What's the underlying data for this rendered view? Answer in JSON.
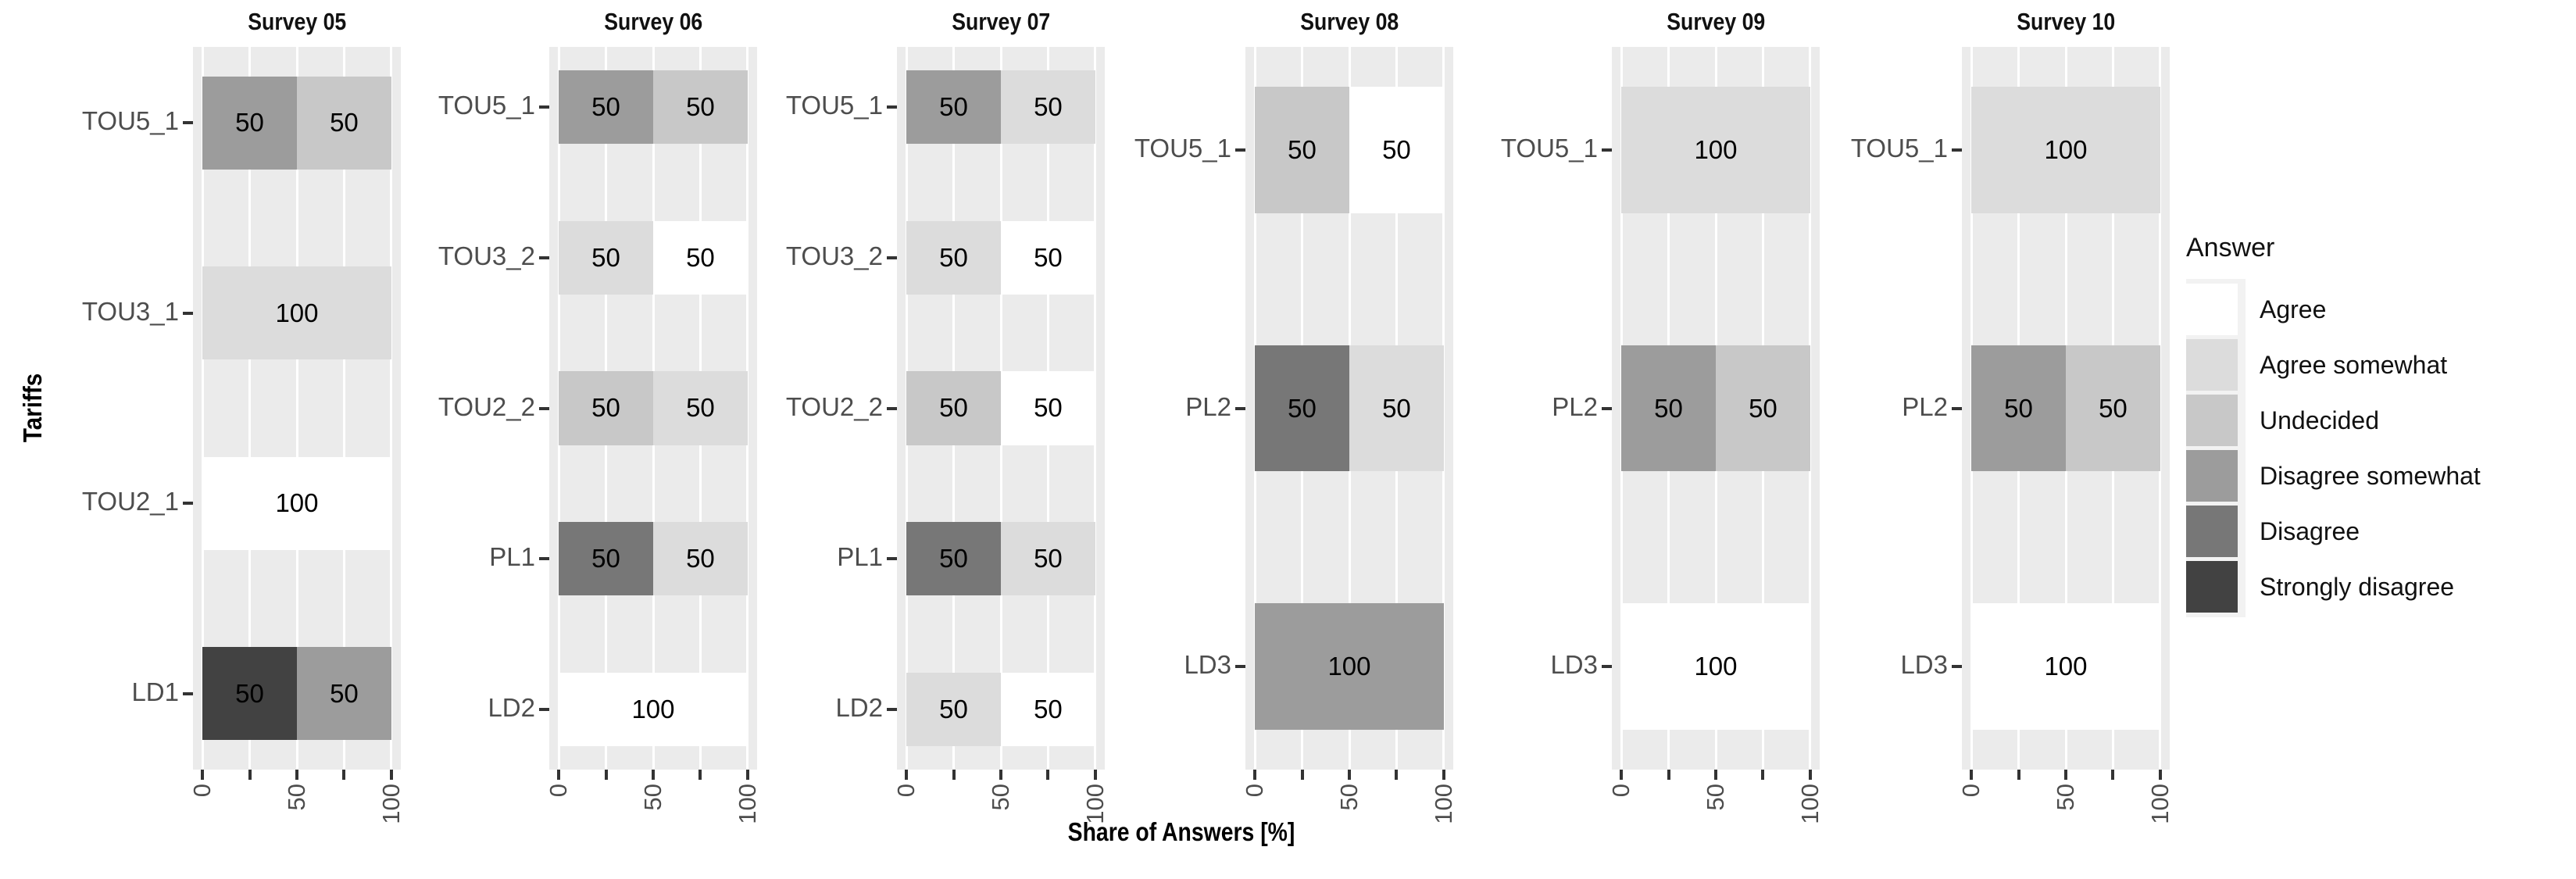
{
  "axes": {
    "x_title": "Share of Answers [%]",
    "y_title": "Tariffs",
    "x_ticks": [
      0,
      25,
      50,
      75,
      100
    ],
    "x_labeled_ticks": [
      0,
      50,
      100
    ],
    "xlim": [
      0,
      100
    ]
  },
  "legend": {
    "title": "Answer",
    "position": "right"
  },
  "answers": [
    {
      "label": "Agree",
      "color": "#FFFFFF"
    },
    {
      "label": "Agree somewhat",
      "color": "#DCDCDC"
    },
    {
      "label": "Undecided",
      "color": "#C8C8C8"
    },
    {
      "label": "Disagree somewhat",
      "color": "#9C9C9C"
    },
    {
      "label": "Disagree",
      "color": "#777777"
    },
    {
      "label": "Strongly disagree",
      "color": "#424242"
    }
  ],
  "style_colors": {
    "panel_background": "#EBEBEB",
    "gridline": "#FFFFFF",
    "tick_mark": "#333333",
    "axis_text": "#4D4D4D",
    "legend_key_background": "#F2F2F2"
  },
  "chart_data": {
    "type": "bar",
    "orientation": "horizontal",
    "stacked": true,
    "title": "",
    "xlabel": "Share of Answers [%]",
    "ylabel": "Tariffs",
    "xlim": [
      0,
      100
    ],
    "legend_title": "Answer",
    "legend_position": "right",
    "grid": true,
    "facets": [
      {
        "title": "Survey 05",
        "rows": [
          {
            "tariff": "TOU5_1",
            "segments": [
              {
                "answer": "Disagree somewhat",
                "value": 50
              },
              {
                "answer": "Undecided",
                "value": 50
              }
            ]
          },
          {
            "tariff": "TOU3_1",
            "segments": [
              {
                "answer": "Agree somewhat",
                "value": 100
              }
            ]
          },
          {
            "tariff": "TOU2_1",
            "segments": [
              {
                "answer": "Agree",
                "value": 100
              }
            ]
          },
          {
            "tariff": "LD1",
            "segments": [
              {
                "answer": "Strongly disagree",
                "value": 50
              },
              {
                "answer": "Disagree somewhat",
                "value": 50
              }
            ]
          }
        ]
      },
      {
        "title": "Survey 06",
        "rows": [
          {
            "tariff": "TOU5_1",
            "segments": [
              {
                "answer": "Disagree somewhat",
                "value": 50
              },
              {
                "answer": "Undecided",
                "value": 50
              }
            ]
          },
          {
            "tariff": "TOU3_2",
            "segments": [
              {
                "answer": "Agree somewhat",
                "value": 50
              },
              {
                "answer": "Agree",
                "value": 50
              }
            ]
          },
          {
            "tariff": "TOU2_2",
            "segments": [
              {
                "answer": "Undecided",
                "value": 50
              },
              {
                "answer": "Agree somewhat",
                "value": 50
              }
            ]
          },
          {
            "tariff": "PL1",
            "segments": [
              {
                "answer": "Disagree",
                "value": 50
              },
              {
                "answer": "Agree somewhat",
                "value": 50
              }
            ]
          },
          {
            "tariff": "LD2",
            "segments": [
              {
                "answer": "Agree",
                "value": 100
              }
            ]
          }
        ]
      },
      {
        "title": "Survey 07",
        "rows": [
          {
            "tariff": "TOU5_1",
            "segments": [
              {
                "answer": "Disagree somewhat",
                "value": 50
              },
              {
                "answer": "Agree somewhat",
                "value": 50
              }
            ]
          },
          {
            "tariff": "TOU3_2",
            "segments": [
              {
                "answer": "Agree somewhat",
                "value": 50
              },
              {
                "answer": "Agree",
                "value": 50
              }
            ]
          },
          {
            "tariff": "TOU2_2",
            "segments": [
              {
                "answer": "Undecided",
                "value": 50
              },
              {
                "answer": "Agree",
                "value": 50
              }
            ]
          },
          {
            "tariff": "PL1",
            "segments": [
              {
                "answer": "Disagree",
                "value": 50
              },
              {
                "answer": "Agree somewhat",
                "value": 50
              }
            ]
          },
          {
            "tariff": "LD2",
            "segments": [
              {
                "answer": "Agree somewhat",
                "value": 50
              },
              {
                "answer": "Agree",
                "value": 50
              }
            ]
          }
        ]
      },
      {
        "title": "Survey 08",
        "rows": [
          {
            "tariff": "TOU5_1",
            "segments": [
              {
                "answer": "Undecided",
                "value": 50
              },
              {
                "answer": "Agree",
                "value": 50
              }
            ]
          },
          {
            "tariff": "PL2",
            "segments": [
              {
                "answer": "Disagree",
                "value": 50
              },
              {
                "answer": "Agree somewhat",
                "value": 50
              }
            ]
          },
          {
            "tariff": "LD3",
            "segments": [
              {
                "answer": "Disagree somewhat",
                "value": 100
              }
            ]
          }
        ]
      },
      {
        "title": "Survey 09",
        "rows": [
          {
            "tariff": "TOU5_1",
            "segments": [
              {
                "answer": "Agree somewhat",
                "value": 100
              }
            ]
          },
          {
            "tariff": "PL2",
            "segments": [
              {
                "answer": "Disagree somewhat",
                "value": 50
              },
              {
                "answer": "Undecided",
                "value": 50
              }
            ]
          },
          {
            "tariff": "LD3",
            "segments": [
              {
                "answer": "Agree",
                "value": 100
              }
            ]
          }
        ]
      },
      {
        "title": "Survey 10",
        "rows": [
          {
            "tariff": "TOU5_1",
            "segments": [
              {
                "answer": "Agree somewhat",
                "value": 100
              }
            ]
          },
          {
            "tariff": "PL2",
            "segments": [
              {
                "answer": "Disagree somewhat",
                "value": 50
              },
              {
                "answer": "Undecided",
                "value": 50
              }
            ]
          },
          {
            "tariff": "LD3",
            "segments": [
              {
                "answer": "Agree",
                "value": 100
              }
            ]
          }
        ]
      }
    ]
  }
}
